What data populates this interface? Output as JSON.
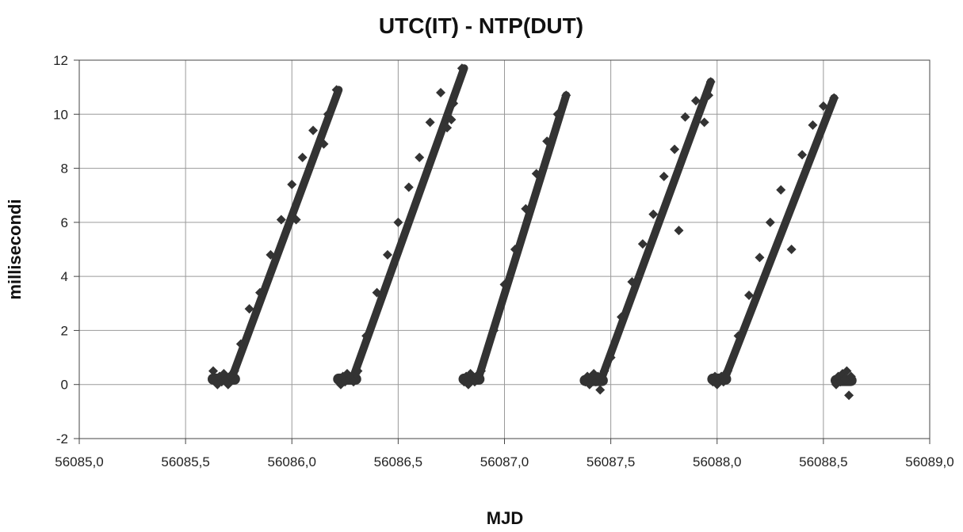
{
  "chart_data": {
    "type": "scatter",
    "title": "UTC(IT) - NTP(DUT)",
    "xlabel": "MJD",
    "ylabel": "millisecondi",
    "xlim": [
      56085.0,
      56089.0
    ],
    "ylim": [
      -2,
      12
    ],
    "x_ticks": [
      56085.0,
      56085.5,
      56086.0,
      56086.5,
      56087.0,
      56087.5,
      56088.0,
      56088.5,
      56089.0
    ],
    "x_tick_labels": [
      "56085,0",
      "56085,5",
      "56086,0",
      "56086,5",
      "56087,0",
      "56087,5",
      "56088,0",
      "56088,5",
      "56089,0"
    ],
    "y_ticks": [
      -2,
      0,
      2,
      4,
      6,
      8,
      10,
      12
    ],
    "y_tick_labels": [
      "-2",
      "0",
      "2",
      "4",
      "6",
      "8",
      "10",
      "12"
    ],
    "grid": true,
    "marker": "diamond",
    "marker_color": "#333333",
    "series": [
      {
        "points": [
          [
            56085.63,
            0.5
          ],
          [
            56085.64,
            0.2
          ],
          [
            56085.65,
            0.0
          ],
          [
            56085.66,
            0.3
          ],
          [
            56085.67,
            0.1
          ],
          [
            56085.68,
            0.4
          ],
          [
            56085.69,
            0.2
          ],
          [
            56085.7,
            0.0
          ],
          [
            56085.71,
            0.3
          ],
          [
            56085.72,
            0.4
          ],
          [
            56085.73,
            0.5
          ],
          [
            56085.76,
            1.5
          ],
          [
            56085.8,
            2.8
          ],
          [
            56085.85,
            3.4
          ],
          [
            56085.9,
            4.8
          ],
          [
            56085.95,
            6.1
          ],
          [
            56086.0,
            7.4
          ],
          [
            56086.02,
            6.1
          ],
          [
            56086.05,
            8.4
          ],
          [
            56086.1,
            9.4
          ],
          [
            56086.15,
            8.9
          ],
          [
            56086.17,
            10.0
          ],
          [
            56086.21,
            10.9
          ],
          [
            56086.22,
            0.2
          ],
          [
            56086.23,
            0.0
          ],
          [
            56086.24,
            0.3
          ],
          [
            56086.25,
            0.1
          ],
          [
            56086.26,
            0.4
          ],
          [
            56086.27,
            0.2
          ],
          [
            56086.28,
            0.3
          ],
          [
            56086.29,
            0.1
          ],
          [
            56086.3,
            0.4
          ],
          [
            56086.31,
            0.5
          ],
          [
            56086.35,
            1.8
          ],
          [
            56086.4,
            3.4
          ],
          [
            56086.45,
            4.8
          ],
          [
            56086.5,
            6.0
          ],
          [
            56086.55,
            7.3
          ],
          [
            56086.6,
            8.4
          ],
          [
            56086.65,
            9.7
          ],
          [
            56086.7,
            10.8
          ],
          [
            56086.73,
            9.5
          ],
          [
            56086.75,
            9.8
          ],
          [
            56086.76,
            10.4
          ],
          [
            56086.8,
            11.7
          ],
          [
            56086.81,
            0.1
          ],
          [
            56086.82,
            0.3
          ],
          [
            56086.83,
            0.0
          ],
          [
            56086.84,
            0.4
          ],
          [
            56086.85,
            0.2
          ],
          [
            56086.86,
            0.1
          ],
          [
            56086.87,
            0.3
          ],
          [
            56086.88,
            0.4
          ],
          [
            56086.89,
            0.5
          ],
          [
            56086.95,
            2.0
          ],
          [
            56087.0,
            3.7
          ],
          [
            56087.05,
            5.0
          ],
          [
            56087.1,
            6.5
          ],
          [
            56087.15,
            7.8
          ],
          [
            56087.2,
            9.0
          ],
          [
            56087.25,
            10.0
          ],
          [
            56087.29,
            10.7
          ],
          [
            56087.38,
            0.1
          ],
          [
            56087.39,
            0.3
          ],
          [
            56087.4,
            0.0
          ],
          [
            56087.41,
            0.2
          ],
          [
            56087.42,
            0.4
          ],
          [
            56087.43,
            0.1
          ],
          [
            56087.44,
            0.3
          ],
          [
            56087.45,
            -0.2
          ],
          [
            56087.46,
            0.2
          ],
          [
            56087.47,
            0.5
          ],
          [
            56087.5,
            1.0
          ],
          [
            56087.55,
            2.5
          ],
          [
            56087.6,
            3.8
          ],
          [
            56087.65,
            5.2
          ],
          [
            56087.7,
            6.3
          ],
          [
            56087.75,
            7.7
          ],
          [
            56087.8,
            8.7
          ],
          [
            56087.82,
            5.7
          ],
          [
            56087.85,
            9.9
          ],
          [
            56087.9,
            10.5
          ],
          [
            56087.94,
            9.7
          ],
          [
            56087.96,
            10.7
          ],
          [
            56087.97,
            11.2
          ],
          [
            56087.98,
            0.1
          ],
          [
            56087.99,
            0.3
          ],
          [
            56088.0,
            0.0
          ],
          [
            56088.01,
            0.2
          ],
          [
            56088.02,
            0.3
          ],
          [
            56088.03,
            0.1
          ],
          [
            56088.04,
            0.4
          ],
          [
            56088.05,
            0.5
          ],
          [
            56088.1,
            1.8
          ],
          [
            56088.15,
            3.3
          ],
          [
            56088.2,
            4.7
          ],
          [
            56088.25,
            6.0
          ],
          [
            56088.3,
            7.2
          ],
          [
            56088.35,
            5.0
          ],
          [
            56088.4,
            8.5
          ],
          [
            56088.45,
            9.6
          ],
          [
            56088.5,
            10.3
          ],
          [
            56088.55,
            10.6
          ],
          [
            56088.56,
            0.0
          ],
          [
            56088.57,
            0.3
          ],
          [
            56088.58,
            0.1
          ],
          [
            56088.59,
            0.4
          ],
          [
            56088.6,
            0.2
          ],
          [
            56088.61,
            0.5
          ],
          [
            56088.62,
            -0.4
          ],
          [
            56088.63,
            0.3
          ]
        ]
      }
    ],
    "segments": [
      {
        "x_start": 56085.72,
        "x_end": 56086.22,
        "y_start": 0.3,
        "y_end": 10.9
      },
      {
        "x_start": 56086.29,
        "x_end": 56086.81,
        "y_start": 0.3,
        "y_end": 11.7
      },
      {
        "x_start": 56086.88,
        "x_end": 56087.29,
        "y_start": 0.3,
        "y_end": 10.7
      },
      {
        "x_start": 56087.46,
        "x_end": 56087.97,
        "y_start": 0.3,
        "y_end": 11.2
      },
      {
        "x_start": 56088.04,
        "x_end": 56088.55,
        "y_start": 0.3,
        "y_end": 10.6
      }
    ],
    "clusters": [
      {
        "x_start": 56085.63,
        "x_end": 56085.73,
        "y_center": 0.2
      },
      {
        "x_start": 56086.22,
        "x_end": 56086.3,
        "y_center": 0.2
      },
      {
        "x_start": 56086.81,
        "x_end": 56086.88,
        "y_center": 0.2
      },
      {
        "x_start": 56087.38,
        "x_end": 56087.46,
        "y_center": 0.15
      },
      {
        "x_start": 56087.98,
        "x_end": 56088.04,
        "y_center": 0.2
      },
      {
        "x_start": 56088.56,
        "x_end": 56088.63,
        "y_center": 0.15
      }
    ]
  }
}
